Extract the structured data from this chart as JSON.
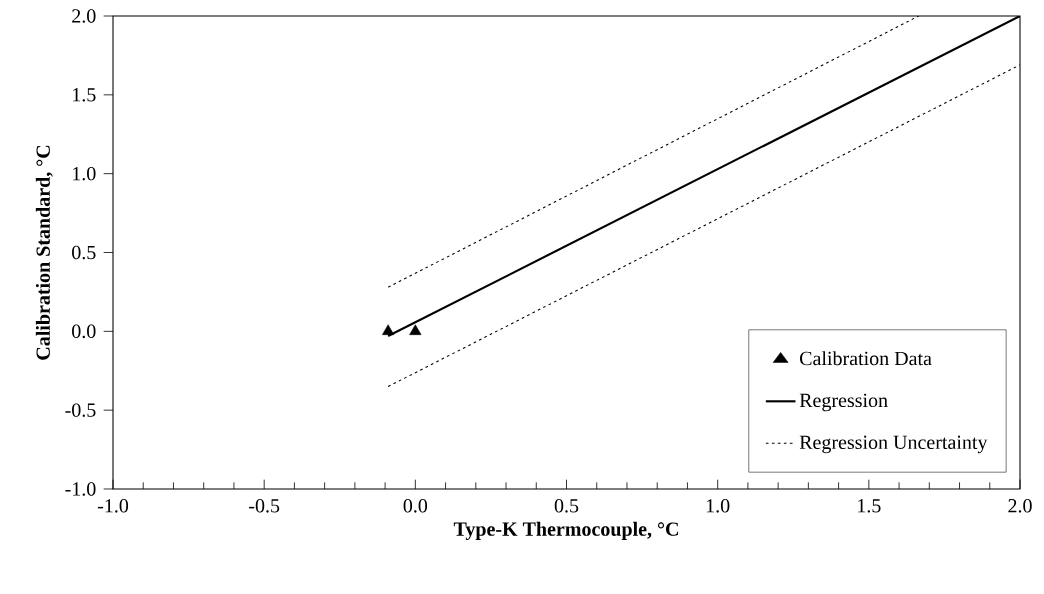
{
  "chart_data": {
    "type": "line",
    "xlabel": "Type-K Thermocouple, °C",
    "ylabel": "Calibration Standard, °C",
    "xlim": [
      -1,
      2
    ],
    "ylim": [
      -1,
      2
    ],
    "xticks": [
      {
        "value": -1,
        "label": "-1.0"
      },
      {
        "value": -0.5,
        "label": "-0.5"
      },
      {
        "value": 0,
        "label": "0.0"
      },
      {
        "value": 0.5,
        "label": "0.5"
      },
      {
        "value": 1,
        "label": "1.0"
      },
      {
        "value": 1.5,
        "label": "1.5"
      },
      {
        "value": 2,
        "label": "2.0"
      }
    ],
    "yticks": [
      {
        "value": -1,
        "label": "-1.0"
      },
      {
        "value": -0.5,
        "label": "-0.5"
      },
      {
        "value": 0,
        "label": "0.0"
      },
      {
        "value": 0.5,
        "label": "0.5"
      },
      {
        "value": 1,
        "label": "1.0"
      },
      {
        "value": 1.5,
        "label": "1.5"
      },
      {
        "value": 2,
        "label": "2.0"
      }
    ],
    "legend": "bottom right",
    "series": [
      {
        "name": "Calibration Data",
        "type": "scatter",
        "marker": "triangle",
        "color": "#000000",
        "x": [
          -0.09,
          0.0
        ],
        "values": [
          0.0,
          0.0
        ]
      },
      {
        "name": "Regression",
        "line_style": "solid",
        "color": "#000000",
        "x": [
          -0.09,
          2.0
        ],
        "values": [
          -0.03,
          2.0
        ]
      },
      {
        "name": "Regression Uncertainty",
        "line_style": "dotted",
        "color": "#000000",
        "x": [
          -0.09,
          1.665
        ],
        "values": [
          0.28,
          2.0
        ]
      },
      {
        "line_style": "dotted",
        "color": "#000000",
        "x": [
          -0.09,
          2.0
        ],
        "values": [
          -0.35,
          1.69
        ]
      }
    ]
  }
}
